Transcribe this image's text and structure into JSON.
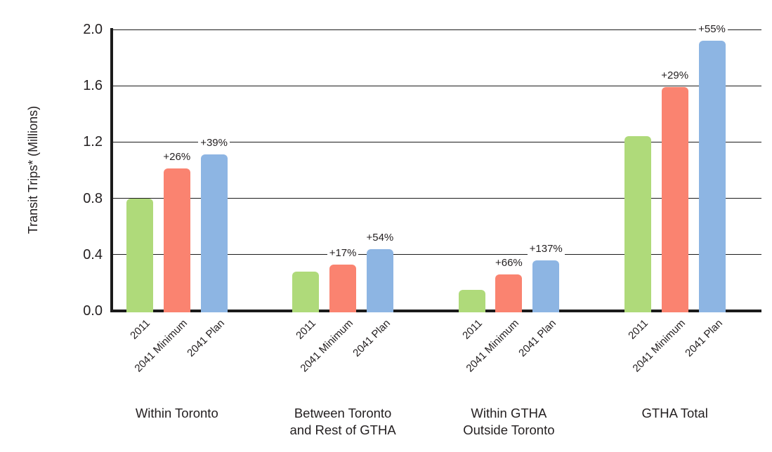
{
  "chart_data": {
    "type": "bar",
    "title": "",
    "xlabel": "",
    "ylabel": "Transit Trips* (Millions)",
    "ylim": [
      0.0,
      2.0
    ],
    "ytick_labels": [
      "0.0",
      "0.4",
      "0.8",
      "1.2",
      "1.6",
      "2.0"
    ],
    "grid": true,
    "legend_position": "none",
    "series_labels": [
      "2011",
      "2041 Minimum",
      "2041 Plan"
    ],
    "series_colors": [
      "#afda7a",
      "#fa8370",
      "#8db5e3"
    ],
    "groups": [
      {
        "label": "Within Toronto",
        "label_lines": [
          "Within Toronto"
        ],
        "values": [
          0.8,
          1.01,
          1.11
        ],
        "pct_labels": [
          "",
          "+26%",
          "+39%"
        ]
      },
      {
        "label": "Between Toronto and Rest of GTHA",
        "label_lines": [
          "Between Toronto",
          "and Rest of GTHA"
        ],
        "values": [
          0.28,
          0.33,
          0.44
        ],
        "pct_labels": [
          "",
          "+17%",
          "+54%"
        ]
      },
      {
        "label": "Within GTHA Outside Toronto",
        "label_lines": [
          "Within GTHA",
          "Outside Toronto"
        ],
        "values": [
          0.15,
          0.26,
          0.36
        ],
        "pct_labels": [
          "",
          "+66%",
          "+137%"
        ]
      },
      {
        "label": "GTHA Total",
        "label_lines": [
          "GTHA Total"
        ],
        "values": [
          1.24,
          1.59,
          1.92
        ],
        "pct_labels": [
          "",
          "+29%",
          "+55%"
        ]
      }
    ]
  },
  "colors": {
    "background": "#ffffff",
    "text": "#231f20",
    "gridline": "#1b1b1b",
    "axis": "#1b1b1b",
    "bar_2011": "#afda7a",
    "bar_2041_minimum": "#fa8370",
    "bar_2041_plan": "#8db5e3"
  }
}
